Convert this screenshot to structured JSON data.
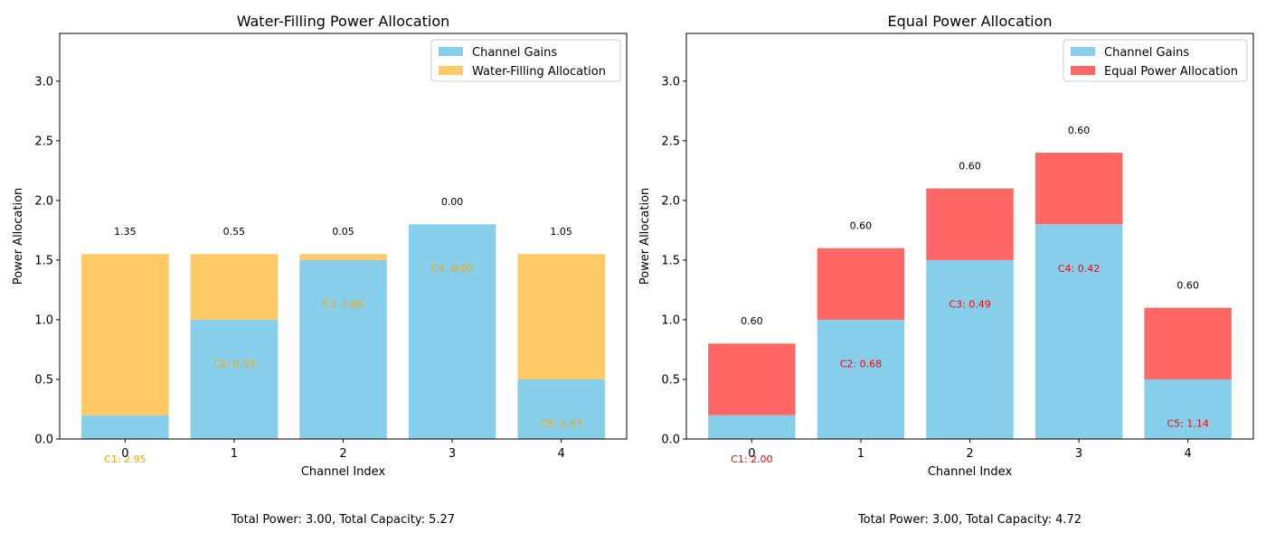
{
  "colors": {
    "gain": "#87ceeb",
    "water": "#ffc966",
    "equal": "#ff6666",
    "water_text": "#ffa500",
    "equal_text": "#ff0000"
  },
  "chart_data": [
    {
      "type": "bar",
      "stacked": true,
      "title": "Water-Filling Power Allocation",
      "xlabel": "Channel Index",
      "ylabel": "Power Allocation",
      "categories": [
        "0",
        "1",
        "2",
        "3",
        "4"
      ],
      "ylim": [
        0,
        3.4
      ],
      "yticks": [
        "0.0",
        "0.5",
        "1.0",
        "1.5",
        "2.0",
        "2.5",
        "3.0"
      ],
      "grid": false,
      "legend_position": "top-right",
      "series": [
        {
          "name": "Channel Gains",
          "values": [
            0.2,
            1.0,
            1.5,
            1.8,
            0.5
          ],
          "color_key": "gain"
        },
        {
          "name": "Water-Filling Allocation",
          "values": [
            1.35,
            0.55,
            0.05,
            0.0,
            1.05
          ],
          "color_key": "water"
        }
      ],
      "top_labels": [
        "1.35",
        "0.55",
        "0.05",
        "0.00",
        "1.05"
      ],
      "inner_labels": [
        "C1: 2.95",
        "C2: 0.63",
        "C3: 0.05",
        "C4: 0.00",
        "C5: 1.63"
      ],
      "inner_label_color_key": "water_text",
      "footer": "Total Power: 3.00, Total Capacity: 5.27"
    },
    {
      "type": "bar",
      "stacked": true,
      "title": "Equal Power Allocation",
      "xlabel": "Channel Index",
      "ylabel": "Power Allocation",
      "categories": [
        "0",
        "1",
        "2",
        "3",
        "4"
      ],
      "ylim": [
        0,
        3.4
      ],
      "yticks": [
        "0.0",
        "0.5",
        "1.0",
        "1.5",
        "2.0",
        "2.5",
        "3.0"
      ],
      "grid": false,
      "legend_position": "top-right",
      "series": [
        {
          "name": "Channel Gains",
          "values": [
            0.2,
            1.0,
            1.5,
            1.8,
            0.5
          ],
          "color_key": "gain"
        },
        {
          "name": "Equal Power Allocation",
          "values": [
            0.6,
            0.6,
            0.6,
            0.6,
            0.6
          ],
          "color_key": "equal"
        }
      ],
      "top_labels": [
        "0.60",
        "0.60",
        "0.60",
        "0.60",
        "0.60"
      ],
      "inner_labels": [
        "C1: 2.00",
        "C2: 0.68",
        "C3: 0.49",
        "C4: 0.42",
        "C5: 1.14"
      ],
      "inner_label_color_key": "equal_text",
      "footer": "Total Power: 3.00, Total Capacity: 4.72"
    }
  ]
}
